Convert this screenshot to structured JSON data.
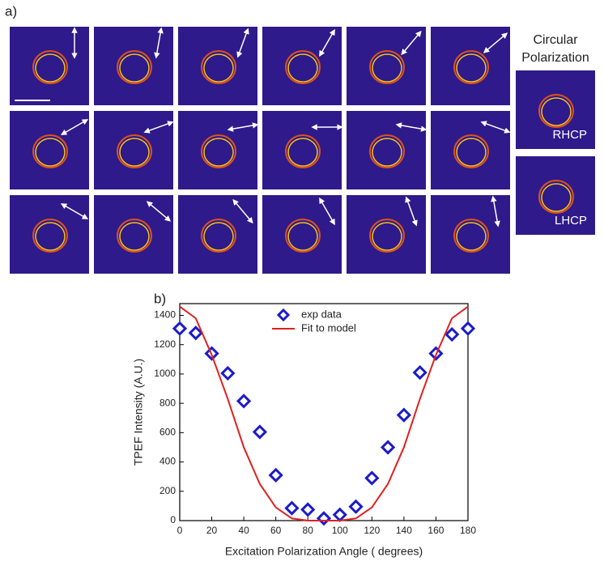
{
  "panel_a": {
    "label": "a)",
    "circular_title": [
      "Circular",
      "Polarization"
    ],
    "tiles": [
      "RHCP",
      "LHCP"
    ]
  },
  "chart_data": {
    "type": "scatter",
    "panel_label": "b)",
    "x_label": "Excitation Polarization Angle ( degrees)",
    "y_label": "TPEF Intensity (A.U.)",
    "x": [
      0,
      10,
      20,
      30,
      40,
      50,
      60,
      70,
      80,
      90,
      100,
      110,
      120,
      130,
      140,
      150,
      160,
      170,
      180
    ],
    "series": [
      {
        "name": "exp data",
        "color": "#1c1cc8",
        "style": "marker",
        "values": [
          1310,
          1280,
          1140,
          1005,
          815,
          605,
          310,
          85,
          75,
          15,
          40,
          95,
          290,
          500,
          720,
          1010,
          1140,
          1270,
          1310
        ]
      },
      {
        "name": "Fit to model",
        "color": "#e02020",
        "style": "line",
        "values": [
          1460,
          1380,
          1130,
          830,
          500,
          250,
          90,
          15,
          0,
          0,
          0,
          15,
          90,
          250,
          500,
          830,
          1130,
          1380,
          1460
        ]
      }
    ],
    "xlim": [
      0,
      180
    ],
    "xticks": [
      0,
      20,
      40,
      60,
      80,
      100,
      120,
      140,
      160,
      180
    ],
    "ylim": [
      0,
      1480
    ],
    "yticks": [
      0,
      200,
      400,
      600,
      800,
      1000,
      1200,
      1400
    ],
    "legend": "upper center"
  }
}
